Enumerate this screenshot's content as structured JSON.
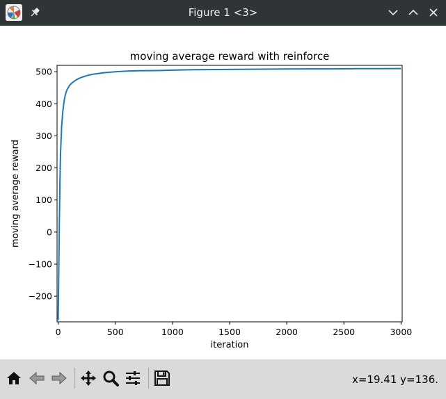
{
  "window": {
    "title": "Figure 1 <3>"
  },
  "chart_data": {
    "type": "line",
    "title": "moving average reward with reinforce",
    "xlabel": "iteration",
    "ylabel": "moving average reward",
    "xlim": [
      -10,
      3010
    ],
    "ylim": [
      -280,
      520
    ],
    "xticks": [
      0,
      500,
      1000,
      1500,
      2000,
      2500,
      3000
    ],
    "yticks": [
      -200,
      -100,
      0,
      100,
      200,
      300,
      400,
      500
    ],
    "grid": false,
    "series": [
      {
        "color": "#1f77b4",
        "x": [
          0,
          5,
          10,
          15,
          20,
          30,
          40,
          50,
          60,
          70,
          80,
          100,
          120,
          150,
          180,
          200,
          250,
          300,
          400,
          500,
          600,
          700,
          800,
          900,
          1000,
          1100,
          1200,
          1400,
          1600,
          1800,
          2000,
          2200,
          2400,
          2600,
          2800,
          3000
        ],
        "y": [
          -275,
          -120,
          30,
          150,
          240,
          330,
          375,
          405,
          424,
          437,
          446,
          458,
          465,
          473,
          479,
          482,
          488,
          492,
          497,
          500,
          502,
          503,
          503.5,
          504,
          505,
          506,
          506.5,
          507,
          507.5,
          508,
          508.5,
          509,
          509,
          509.5,
          509.8,
          510
        ]
      }
    ]
  },
  "toolbar": {
    "buttons": [
      {
        "icon": "home-icon"
      },
      {
        "icon": "back-arrow-icon"
      },
      {
        "icon": "forward-arrow-icon"
      },
      {
        "icon": "pan-icon"
      },
      {
        "icon": "zoom-icon"
      },
      {
        "icon": "configure-subplots-icon"
      },
      {
        "icon": "save-icon"
      }
    ],
    "coordinates": "x=19.41 y=136."
  }
}
